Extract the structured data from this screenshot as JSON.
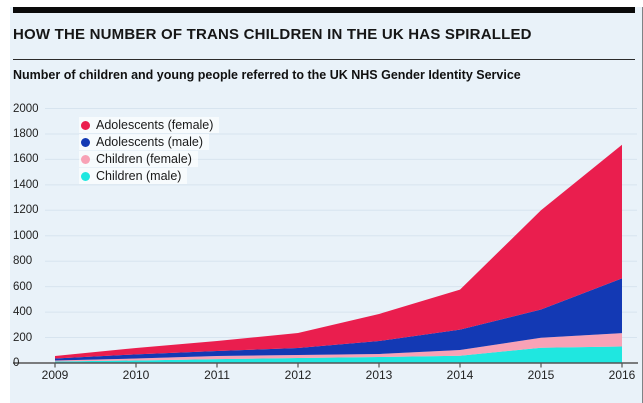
{
  "header": {
    "title": "HOW THE NUMBER OF TRANS CHILDREN IN THE UK HAS SPIRALLED",
    "subtitle": "Number of children and young people referred to the UK NHS Gender Identity Service"
  },
  "colors": {
    "page_bg": "#ffffff",
    "card_bg": "#e9f2f9",
    "top_bar": "#0a0a0a",
    "grid": "#d7e4ef",
    "axis": "#555555",
    "tick_text": "#222222",
    "legend_bg": "rgba(255,255,255,0.65)"
  },
  "chart_data": {
    "type": "area",
    "stacked": true,
    "title": "HOW THE NUMBER OF TRANS CHILDREN IN THE UK HAS SPIRALLED",
    "subtitle": "Number of children and young people referred to the UK NHS Gender Identity Service",
    "x": [
      2009,
      2010,
      2011,
      2012,
      2013,
      2014,
      2015,
      2016
    ],
    "x_tick_labels": [
      "2009",
      "2010",
      "2011",
      "2012",
      "2013",
      "2014",
      "2015",
      "2016"
    ],
    "series": [
      {
        "name": "Adolescents (female)",
        "color": "#ea1e4e",
        "values": [
          20,
          50,
          79,
          118,
          212,
          315,
          780,
          1050
        ]
      },
      {
        "name": "Adolescents (male)",
        "color": "#1339b4",
        "values": [
          15,
          33,
          39,
          55,
          102,
          160,
          222,
          430
        ]
      },
      {
        "name": "Children (female)",
        "color": "#f8a2b6",
        "values": [
          8,
          15,
          25,
          24,
          24,
          45,
          78,
          105
        ]
      },
      {
        "name": "Children (male)",
        "color": "#1fe7e0",
        "values": [
          12,
          20,
          30,
          39,
          47,
          57,
          120,
          130
        ]
      }
    ],
    "stack_order_bottom_to_top": [
      "Children (male)",
      "Children (female)",
      "Adolescents (male)",
      "Adolescents (female)"
    ],
    "stack_totals": [
      55,
      118,
      173,
      236,
      385,
      577,
      1200,
      1715
    ],
    "ylim": [
      0,
      2000
    ],
    "y_ticks": [
      0,
      200,
      400,
      600,
      800,
      1000,
      1200,
      1400,
      1600,
      1800,
      2000
    ],
    "grid": "horizontal",
    "legend_position": "top-left",
    "values_are_estimated_from_pixels": true
  }
}
